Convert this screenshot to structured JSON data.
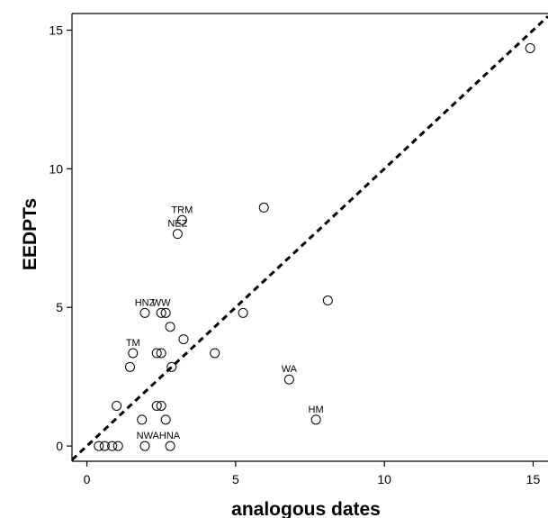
{
  "chart_data": {
    "type": "scatter",
    "title": "",
    "xlabel": "analogous dates",
    "ylabel": "EEDPTs",
    "xlim": [
      -0.5,
      15.5
    ],
    "ylim": [
      -0.55,
      15.6
    ],
    "x_ticks": [
      0,
      5,
      10,
      15
    ],
    "y_ticks": [
      0,
      5,
      10,
      15
    ],
    "grid": false,
    "reference_line": {
      "style": "dashed",
      "from": [
        -0.5,
        -0.5
      ],
      "to": [
        15.5,
        15.5
      ]
    },
    "points": [
      {
        "x": 0.4,
        "y": 0.0,
        "label": ""
      },
      {
        "x": 0.6,
        "y": 0.0,
        "label": ""
      },
      {
        "x": 0.85,
        "y": 0.0,
        "label": ""
      },
      {
        "x": 1.05,
        "y": 0.0,
        "label": ""
      },
      {
        "x": 1.0,
        "y": 1.45,
        "label": ""
      },
      {
        "x": 1.85,
        "y": 0.95,
        "label": ""
      },
      {
        "x": 1.95,
        "y": 0.0,
        "label": ""
      },
      {
        "x": 2.35,
        "y": 1.45,
        "label": ""
      },
      {
        "x": 2.5,
        "y": 1.45,
        "label": ""
      },
      {
        "x": 2.65,
        "y": 0.95,
        "label": ""
      },
      {
        "x": 2.8,
        "y": 0.0,
        "label": ""
      },
      {
        "x": 1.45,
        "y": 2.85,
        "label": ""
      },
      {
        "x": 1.55,
        "y": 3.35,
        "label": "TM"
      },
      {
        "x": 2.35,
        "y": 3.35,
        "label": ""
      },
      {
        "x": 2.5,
        "y": 3.35,
        "label": ""
      },
      {
        "x": 2.85,
        "y": 2.85,
        "label": ""
      },
      {
        "x": 2.8,
        "y": 4.3,
        "label": ""
      },
      {
        "x": 3.25,
        "y": 3.85,
        "label": ""
      },
      {
        "x": 1.95,
        "y": 4.8,
        "label": "HNZ"
      },
      {
        "x": 2.5,
        "y": 4.8,
        "label": "WW"
      },
      {
        "x": 2.65,
        "y": 4.8,
        "label": ""
      },
      {
        "x": 4.3,
        "y": 3.35,
        "label": ""
      },
      {
        "x": 5.25,
        "y": 4.8,
        "label": ""
      },
      {
        "x": 3.05,
        "y": 7.65,
        "label": "NEZ"
      },
      {
        "x": 3.2,
        "y": 8.15,
        "label": "TRM"
      },
      {
        "x": 5.95,
        "y": 8.6,
        "label": ""
      },
      {
        "x": 6.8,
        "y": 2.4,
        "label": "WA"
      },
      {
        "x": 8.1,
        "y": 5.25,
        "label": ""
      },
      {
        "x": 7.7,
        "y": 0.95,
        "label": "HM"
      },
      {
        "x": 14.9,
        "y": 14.35,
        "label": ""
      }
    ],
    "extra_labels": [
      {
        "text": "NWAHNA",
        "x": 2.4,
        "y": 0.0
      }
    ]
  }
}
